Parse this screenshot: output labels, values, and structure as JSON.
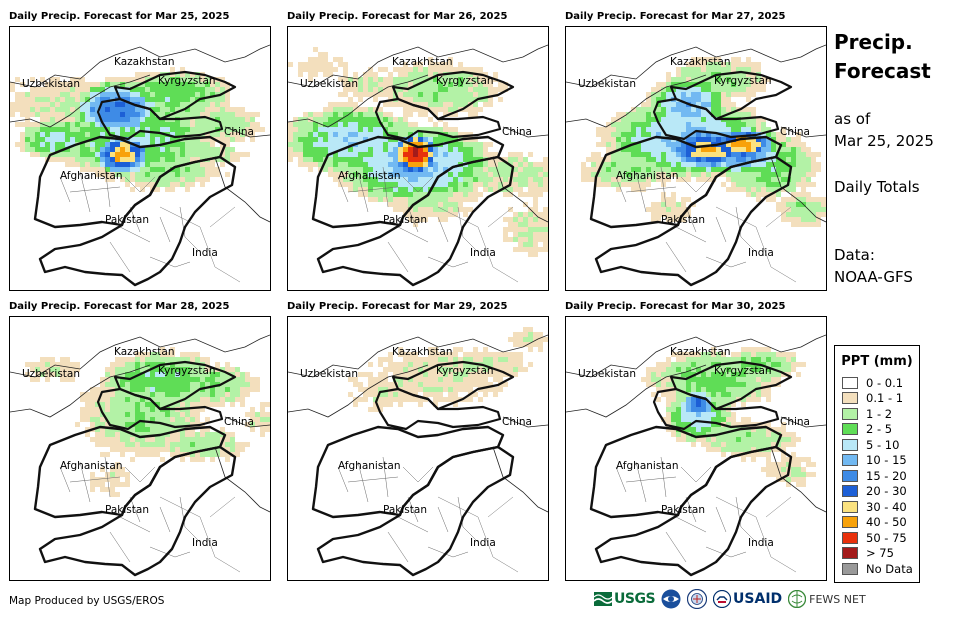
{
  "panels": [
    {
      "title": "Daily Precip. Forecast for Mar 25, 2025",
      "variant": 0
    },
    {
      "title": "Daily Precip. Forecast for Mar 26, 2025",
      "variant": 1
    },
    {
      "title": "Daily Precip. Forecast for Mar 27, 2025",
      "variant": 2
    },
    {
      "title": "Daily Precip. Forecast for Mar 28, 2025",
      "variant": 3
    },
    {
      "title": "Daily Precip. Forecast for Mar 29, 2025",
      "variant": 4
    },
    {
      "title": "Daily Precip. Forecast for Mar 30, 2025",
      "variant": 5
    }
  ],
  "map_labels": {
    "kazakhstan": "Kazakhstan",
    "uzbekistan": "Uzbekistan",
    "kyrgyzstan": "Kyrgyzstan",
    "china": "China",
    "afghanistan": "Afghanistan",
    "pakistan": "Pakistan",
    "india": "India"
  },
  "side": {
    "title_line1": "Precip.",
    "title_line2": "Forecast",
    "as_of": "as of",
    "date": "Mar 25, 2025",
    "totals": "Daily Totals",
    "data_label": "Data:",
    "data_source": "NOAA-GFS"
  },
  "legend": {
    "title": "PPT (mm)",
    "items": [
      {
        "label": "0 - 0.1",
        "color": "#ffffff"
      },
      {
        "label": "0.1 - 1",
        "color": "#f3dfbd"
      },
      {
        "label": "1 - 2",
        "color": "#b3f2a6"
      },
      {
        "label": "2 - 5",
        "color": "#5fdd56"
      },
      {
        "label": "5 - 10",
        "color": "#b9e8f7"
      },
      {
        "label": "10 - 15",
        "color": "#72b9f2"
      },
      {
        "label": "15 - 20",
        "color": "#3e8be6"
      },
      {
        "label": "20 - 30",
        "color": "#1c5fd6"
      },
      {
        "label": "30 - 40",
        "color": "#fbe27f"
      },
      {
        "label": "40 - 50",
        "color": "#f8a20a"
      },
      {
        "label": "50 - 75",
        "color": "#e8310c"
      },
      {
        "label": "> 75",
        "color": "#a31b1b"
      },
      {
        "label": "No Data",
        "color": "#999999"
      }
    ]
  },
  "credit": "Map Produced by USGS/EROS",
  "logos": {
    "usgs": "USGS",
    "usaid": "USAID",
    "fewsnet": "FEWS NET"
  }
}
